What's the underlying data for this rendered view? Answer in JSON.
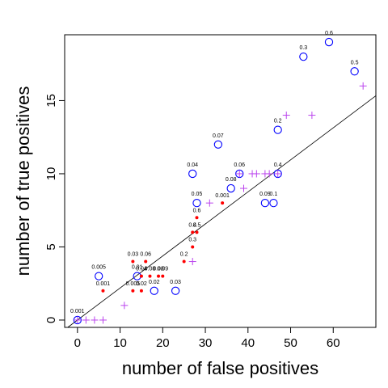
{
  "chart_data": {
    "type": "scatter",
    "title": "",
    "xlabel": "number of false positives",
    "ylabel": "number of true positives",
    "xlim": [
      -3,
      70
    ],
    "ylim": [
      -0.5,
      19.5
    ],
    "xticks": [
      0,
      10,
      20,
      30,
      40,
      50,
      60
    ],
    "yticks": [
      0,
      5,
      10,
      15
    ],
    "colors": {
      "circle": "#0000ff",
      "dot": "#ff0000",
      "plus": "#bb44ee",
      "line": "#000000"
    },
    "reference_line": {
      "intercept": 0,
      "slope": 0.219
    },
    "series": [
      {
        "marker": "circle",
        "points": [
          {
            "x": 0,
            "y": 0,
            "label": "0.001"
          },
          {
            "x": 5,
            "y": 3,
            "label": "0.005"
          },
          {
            "x": 14,
            "y": 3,
            "label": "0.01"
          },
          {
            "x": 18,
            "y": 2,
            "label": "0.02"
          },
          {
            "x": 23,
            "y": 2,
            "label": "0.03"
          },
          {
            "x": 27,
            "y": 10,
            "label": "0.04"
          },
          {
            "x": 28,
            "y": 8,
            "label": "0.05"
          },
          {
            "x": 38,
            "y": 10,
            "label": "0.06"
          },
          {
            "x": 33,
            "y": 12,
            "label": "0.07"
          },
          {
            "x": 36,
            "y": 9,
            "label": "0.08"
          },
          {
            "x": 44,
            "y": 8,
            "label": "0.09"
          },
          {
            "x": 46,
            "y": 8,
            "label": "0.1"
          },
          {
            "x": 47,
            "y": 13,
            "label": "0.2"
          },
          {
            "x": 53,
            "y": 18,
            "label": "0.3"
          },
          {
            "x": 47,
            "y": 10,
            "label": "0.4"
          },
          {
            "x": 65,
            "y": 17,
            "label": "0.5"
          },
          {
            "x": 59,
            "y": 19,
            "label": "0.6"
          }
        ]
      },
      {
        "marker": "dot",
        "points": [
          {
            "x": 6,
            "y": 2,
            "label": "0.001"
          },
          {
            "x": 13,
            "y": 2,
            "label": "0.005"
          },
          {
            "x": 15,
            "y": 2,
            "label": "0.02"
          },
          {
            "x": 13,
            "y": 4,
            "label": "0.03"
          },
          {
            "x": 15,
            "y": 3,
            "label": "0.04"
          },
          {
            "x": 16,
            "y": 4,
            "label": "0.06"
          },
          {
            "x": 17,
            "y": 3,
            "label": "0.08"
          },
          {
            "x": 19,
            "y": 3,
            "label": "0.08"
          },
          {
            "x": 20,
            "y": 3,
            "label": "0.09"
          },
          {
            "x": 25,
            "y": 4,
            "label": "0.2"
          },
          {
            "x": 27,
            "y": 5,
            "label": "0.3"
          },
          {
            "x": 27,
            "y": 6,
            "label": "0.4"
          },
          {
            "x": 28,
            "y": 6,
            "label": "0.5"
          },
          {
            "x": 28,
            "y": 7,
            "label": "0.6"
          },
          {
            "x": 34,
            "y": 8,
            "label": "0.001"
          }
        ]
      },
      {
        "marker": "plus",
        "points": [
          {
            "x": 0,
            "y": 0
          },
          {
            "x": 2,
            "y": 0
          },
          {
            "x": 4,
            "y": 0
          },
          {
            "x": 6,
            "y": 0
          },
          {
            "x": 11,
            "y": 1
          },
          {
            "x": 27,
            "y": 4
          },
          {
            "x": 31,
            "y": 8
          },
          {
            "x": 38,
            "y": 10
          },
          {
            "x": 39,
            "y": 9
          },
          {
            "x": 41,
            "y": 10
          },
          {
            "x": 42,
            "y": 10
          },
          {
            "x": 44,
            "y": 10
          },
          {
            "x": 45,
            "y": 10
          },
          {
            "x": 47,
            "y": 10
          },
          {
            "x": 49,
            "y": 14
          },
          {
            "x": 55,
            "y": 14
          },
          {
            "x": 67,
            "y": 16
          }
        ]
      }
    ]
  }
}
